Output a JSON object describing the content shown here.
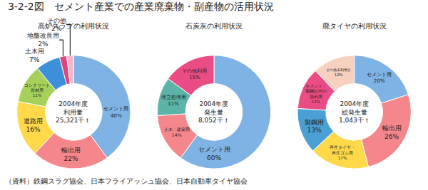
{
  "title": "3-2-2図　セメント産業での産業廃棄物・副産物の活用状況",
  "note": "（資料）鉄鋼スラグ協会、日本フライアッシュ協会、日本自動車タイヤ協会",
  "chart_data": [
    {
      "type": "pie",
      "title": "高炉スラグの利用状況",
      "annotations": [
        "2004年度\n利用量\n25,321千ｔ"
      ],
      "categories": [
        "セメント用",
        "輸出用",
        "道路用",
        "コンクリート\n骨材用",
        "土木用",
        "地盤改良用",
        "その他"
      ],
      "values": [
        40,
        22,
        16,
        11,
        7,
        2,
        2
      ],
      "value_labels": [
        "40%",
        "22%",
        "16%",
        "11%",
        "7%",
        "2%",
        "2%"
      ],
      "colors": [
        "#7fb2e5",
        "#f4868c",
        "#ffd94a",
        "#a6d05a",
        "#3d8fd9",
        "#e0447a",
        "#f2b8c8"
      ],
      "data_labels": true
    },
    {
      "type": "pie",
      "title": "石炭灰の利用状況",
      "annotations": [
        "2004年度\n発生量\n8,052千ｔ"
      ],
      "categories": [
        "セメント用",
        "土木・建築用",
        "埋立処理用",
        "その他利用"
      ],
      "values": [
        60,
        14,
        11,
        15
      ],
      "value_labels": [
        "60%",
        "14%",
        "11%",
        "15%"
      ],
      "colors": [
        "#7fb2e5",
        "#f4868c",
        "#5cb3a8",
        "#ec4c86"
      ],
      "data_labels": true
    },
    {
      "type": "pie",
      "title": "廃タイヤの利用状況",
      "annotations": [
        "2004年度\n総発生量\n1,043千ｔ"
      ],
      "categories": [
        "セメント用",
        "輸出用",
        "再生タイヤ・\n再生ゴム用",
        "製鋼用",
        "セメント・\n製鋼以外の\n熱利用",
        "その他未利用分"
      ],
      "values": [
        20,
        26,
        17,
        13,
        12,
        12
      ],
      "value_labels": [
        "20%",
        "26%",
        "17%",
        "13%",
        "12%",
        "12%"
      ],
      "colors": [
        "#7fb2e5",
        "#f4868c",
        "#ffd94a",
        "#4a9fd4",
        "#ec4c86",
        "#f8d0c0"
      ],
      "data_labels": true
    }
  ]
}
